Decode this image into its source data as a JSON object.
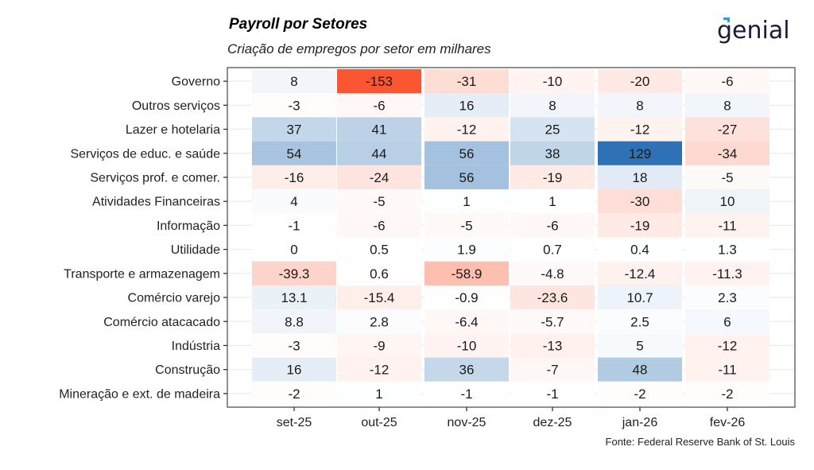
{
  "header": {
    "title": "Payroll por Setores",
    "subtitle": "Criação de empregos por setor em milhares",
    "logo_text": "genial"
  },
  "footer": {
    "source": "Fonte: Federal Reserve Bank of St. Louis"
  },
  "colors": {
    "negative_max": "#FC5532",
    "positive_max": "#2E72B5",
    "neutral": "#FFFFFF",
    "logo_text": "#1a1a3a",
    "logo_accent": "#2F9BE8"
  },
  "chart_data": {
    "type": "heatmap",
    "title": "Payroll por Setores",
    "subtitle": "Criação de empregos por setor em milhares",
    "xlabel": "",
    "ylabel": "",
    "x": [
      "set-25",
      "out-25",
      "nov-25",
      "dez-25",
      "jan-26",
      "fev-26"
    ],
    "y": [
      "Governo",
      "Outros serviços",
      "Lazer e hotelaria",
      "Serviços de educ. e saúde",
      "Serviços prof. e comer.",
      "Atividades Financeiras",
      "Informação",
      "Utilidade",
      "Transporte e armazenagem",
      "Comércio varejo",
      "Comércio atacacado",
      "Indústria",
      "Construção",
      "Mineração e ext. de madeira"
    ],
    "values": [
      [
        "8",
        "-153",
        "-31",
        "-10",
        "-20",
        "-6"
      ],
      [
        "-3",
        "-6",
        "16",
        "8",
        "8",
        "8"
      ],
      [
        "37",
        "41",
        "-12",
        "25",
        "-12",
        "-27"
      ],
      [
        "54",
        "44",
        "56",
        "38",
        "129",
        "-34"
      ],
      [
        "-16",
        "-24",
        "56",
        "-19",
        "18",
        "-5"
      ],
      [
        "4",
        "-5",
        "1",
        "1",
        "-30",
        "10"
      ],
      [
        "-1",
        "-6",
        "-5",
        "-6",
        "-19",
        "-11"
      ],
      [
        "0",
        "0.5",
        "1.9",
        "0.7",
        "0.4",
        "1.3"
      ],
      [
        "-39.3",
        "0.6",
        "-58.9",
        "-4.8",
        "-12.4",
        "-11.3"
      ],
      [
        "13.1",
        "-15.4",
        "-0.9",
        "-23.6",
        "10.7",
        "2.3"
      ],
      [
        "8.8",
        "2.8",
        "-6.4",
        "-5.7",
        "2.5",
        "6"
      ],
      [
        "-3",
        "-9",
        "-10",
        "-13",
        "5",
        "-12"
      ],
      [
        "16",
        "-12",
        "36",
        "-7",
        "48",
        "-11"
      ],
      [
        "-2",
        "1",
        "-1",
        "-1",
        "-2",
        "-2"
      ]
    ],
    "color_scale": {
      "min": -153,
      "max": 129,
      "low_color": "#FC5532",
      "mid_color": "#FFFFFF",
      "high_color": "#2E72B5"
    },
    "grid": true,
    "legend": "none",
    "source": "Fonte: Federal Reserve Bank of St. Louis"
  }
}
